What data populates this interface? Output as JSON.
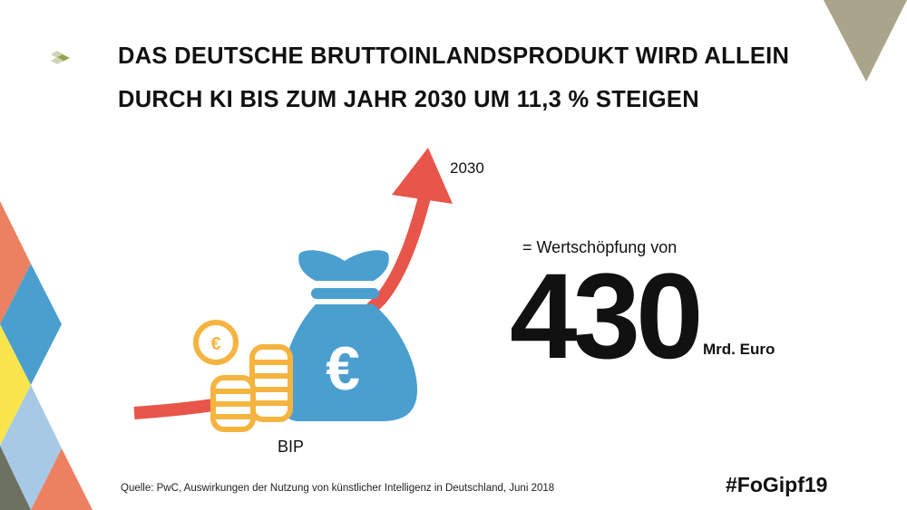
{
  "title": {
    "line1": "DAS DEUTSCHE BRUTTOINLANDSPRODUKT WIRD ALLEIN",
    "line2": "DURCH KI BIS ZUM JAHR 2030 UM 11,3 % STEIGEN"
  },
  "illustration": {
    "arrow_label": "2030",
    "base_label": "BIP",
    "bag_symbol": "€",
    "coin_symbol": "€"
  },
  "figure": {
    "label": "= Wertschöpfung von",
    "value": "430",
    "unit": "Mrd. Euro"
  },
  "source": "Quelle: PwC, Auswirkungen der Nutzung von künstlicher Intelligenz in Deutschland, Juni 2018",
  "hashtag": "#FoGipf19",
  "colors": {
    "arrow": "#e8554a",
    "bag": "#4a9fcf",
    "coins": "#f5b43f",
    "corner_triangle": "#aaa48a",
    "orange": "#ec8161",
    "blue": "#4a9fcf",
    "yellow": "#f9e54d",
    "light_blue": "#a7c9e6",
    "gray": "#6d7160"
  }
}
